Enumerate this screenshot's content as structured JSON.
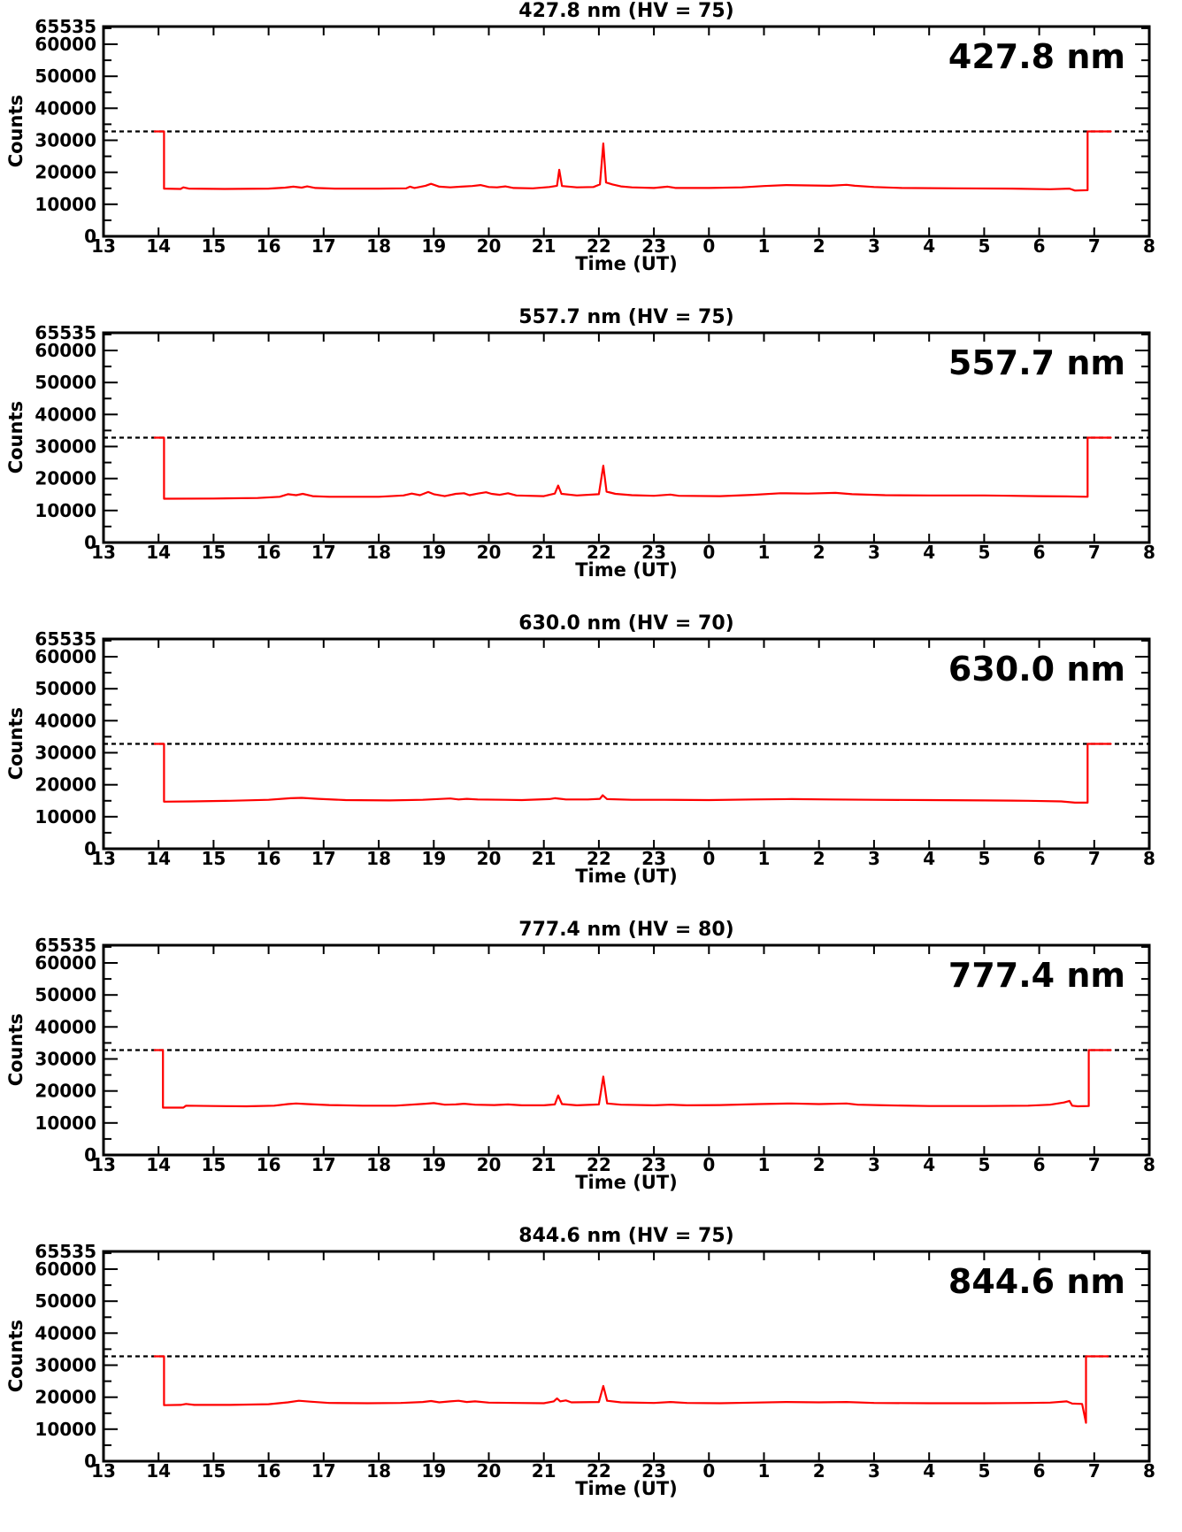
{
  "colors": {
    "line": "#ff0000",
    "axis": "#000000",
    "threshold_dash": "#000000",
    "background": "#ffffff"
  },
  "chart_data": {
    "type": "line",
    "layout": "5 stacked time-series panels, shared axes style",
    "x": {
      "label": "Time (UT)",
      "range_hours": [
        13,
        32
      ],
      "tick_labels": [
        "13",
        "14",
        "15",
        "16",
        "17",
        "18",
        "19",
        "20",
        "21",
        "22",
        "23",
        "0",
        "1",
        "2",
        "3",
        "4",
        "5",
        "6",
        "7",
        "8"
      ]
    },
    "y": {
      "label": "Counts",
      "range": [
        0,
        65535
      ],
      "major_ticks": [
        0,
        10000,
        20000,
        30000,
        40000,
        50000,
        60000,
        65535
      ],
      "major_tick_labels": [
        "0",
        "10000",
        "20000",
        "30000",
        "40000",
        "50000",
        "60000",
        "65535"
      ],
      "minor_step": 5000
    },
    "threshold": 32767,
    "legend_position": "none",
    "grid": false,
    "panels": [
      {
        "title": "427.8 nm (HV = 75)",
        "wavelength_label": "427.8 nm",
        "hv": 75,
        "points": [
          [
            13.93,
            32767
          ],
          [
            14.1,
            32767
          ],
          [
            14.1,
            14900
          ],
          [
            14.4,
            14800
          ],
          [
            14.45,
            15300
          ],
          [
            14.55,
            14900
          ],
          [
            15.2,
            14800
          ],
          [
            16.0,
            14900
          ],
          [
            16.3,
            15200
          ],
          [
            16.45,
            15500
          ],
          [
            16.6,
            15200
          ],
          [
            16.7,
            15600
          ],
          [
            16.85,
            15100
          ],
          [
            17.2,
            14900
          ],
          [
            18.0,
            14900
          ],
          [
            18.5,
            15000
          ],
          [
            18.57,
            15500
          ],
          [
            18.65,
            15100
          ],
          [
            18.85,
            15800
          ],
          [
            18.95,
            16400
          ],
          [
            19.1,
            15500
          ],
          [
            19.3,
            15300
          ],
          [
            19.5,
            15500
          ],
          [
            19.7,
            15700
          ],
          [
            19.85,
            16000
          ],
          [
            20.0,
            15400
          ],
          [
            20.15,
            15300
          ],
          [
            20.3,
            15600
          ],
          [
            20.45,
            15100
          ],
          [
            20.8,
            15000
          ],
          [
            21.1,
            15400
          ],
          [
            21.24,
            15800
          ],
          [
            21.28,
            20800
          ],
          [
            21.33,
            15700
          ],
          [
            21.6,
            15300
          ],
          [
            21.9,
            15400
          ],
          [
            22.02,
            16200
          ],
          [
            22.08,
            29000
          ],
          [
            22.13,
            16800
          ],
          [
            22.25,
            16200
          ],
          [
            22.4,
            15600
          ],
          [
            22.6,
            15300
          ],
          [
            23.0,
            15100
          ],
          [
            23.25,
            15500
          ],
          [
            23.4,
            15100
          ],
          [
            24.0,
            15100
          ],
          [
            24.6,
            15300
          ],
          [
            25.0,
            15700
          ],
          [
            25.4,
            16000
          ],
          [
            25.8,
            15900
          ],
          [
            26.2,
            15800
          ],
          [
            26.5,
            16100
          ],
          [
            26.65,
            15800
          ],
          [
            27.0,
            15400
          ],
          [
            27.5,
            15100
          ],
          [
            28.5,
            15000
          ],
          [
            29.5,
            14900
          ],
          [
            30.2,
            14700
          ],
          [
            30.55,
            14900
          ],
          [
            30.65,
            14300
          ],
          [
            30.88,
            14400
          ],
          [
            30.88,
            32767
          ],
          [
            31.3,
            32767
          ]
        ]
      },
      {
        "title": "557.7 nm (HV = 75)",
        "wavelength_label": "557.7 nm",
        "hv": 75,
        "points": [
          [
            13.93,
            32767
          ],
          [
            14.1,
            32767
          ],
          [
            14.1,
            13700
          ],
          [
            15.0,
            13750
          ],
          [
            15.8,
            13900
          ],
          [
            16.2,
            14300
          ],
          [
            16.35,
            15100
          ],
          [
            16.5,
            14800
          ],
          [
            16.62,
            15200
          ],
          [
            16.8,
            14500
          ],
          [
            17.1,
            14300
          ],
          [
            18.0,
            14300
          ],
          [
            18.45,
            14700
          ],
          [
            18.6,
            15300
          ],
          [
            18.75,
            14800
          ],
          [
            18.9,
            15800
          ],
          [
            19.0,
            15100
          ],
          [
            19.2,
            14500
          ],
          [
            19.4,
            15200
          ],
          [
            19.55,
            15400
          ],
          [
            19.65,
            14800
          ],
          [
            19.8,
            15300
          ],
          [
            19.95,
            15700
          ],
          [
            20.05,
            15200
          ],
          [
            20.2,
            14900
          ],
          [
            20.35,
            15400
          ],
          [
            20.5,
            14700
          ],
          [
            21.0,
            14500
          ],
          [
            21.2,
            15300
          ],
          [
            21.26,
            17800
          ],
          [
            21.32,
            15200
          ],
          [
            21.6,
            14700
          ],
          [
            22.0,
            15100
          ],
          [
            22.08,
            24000
          ],
          [
            22.14,
            15900
          ],
          [
            22.3,
            15200
          ],
          [
            22.6,
            14800
          ],
          [
            23.0,
            14600
          ],
          [
            23.3,
            15000
          ],
          [
            23.45,
            14600
          ],
          [
            24.2,
            14500
          ],
          [
            24.8,
            14900
          ],
          [
            25.3,
            15400
          ],
          [
            25.8,
            15300
          ],
          [
            26.3,
            15500
          ],
          [
            26.6,
            15100
          ],
          [
            27.2,
            14800
          ],
          [
            28.0,
            14700
          ],
          [
            29.0,
            14700
          ],
          [
            30.0,
            14500
          ],
          [
            30.5,
            14400
          ],
          [
            30.88,
            14300
          ],
          [
            30.88,
            32767
          ],
          [
            31.3,
            32767
          ]
        ]
      },
      {
        "title": "630.0 nm (HV = 70)",
        "wavelength_label": "630.0 nm",
        "hv": 70,
        "points": [
          [
            13.93,
            32767
          ],
          [
            14.1,
            32767
          ],
          [
            14.1,
            14700
          ],
          [
            14.6,
            14800
          ],
          [
            15.3,
            15000
          ],
          [
            16.0,
            15300
          ],
          [
            16.4,
            15800
          ],
          [
            16.6,
            15900
          ],
          [
            16.9,
            15600
          ],
          [
            17.4,
            15200
          ],
          [
            18.2,
            15100
          ],
          [
            18.8,
            15300
          ],
          [
            19.3,
            15700
          ],
          [
            19.45,
            15400
          ],
          [
            19.6,
            15600
          ],
          [
            19.8,
            15400
          ],
          [
            20.3,
            15300
          ],
          [
            20.6,
            15200
          ],
          [
            21.1,
            15500
          ],
          [
            21.2,
            15800
          ],
          [
            21.4,
            15400
          ],
          [
            21.8,
            15400
          ],
          [
            22.02,
            15600
          ],
          [
            22.07,
            16700
          ],
          [
            22.15,
            15500
          ],
          [
            22.6,
            15300
          ],
          [
            23.2,
            15300
          ],
          [
            24.0,
            15200
          ],
          [
            24.8,
            15400
          ],
          [
            25.5,
            15500
          ],
          [
            26.2,
            15400
          ],
          [
            27.0,
            15300
          ],
          [
            28.0,
            15200
          ],
          [
            29.0,
            15100
          ],
          [
            29.8,
            15000
          ],
          [
            30.4,
            14800
          ],
          [
            30.65,
            14400
          ],
          [
            30.88,
            14400
          ],
          [
            30.88,
            32767
          ],
          [
            31.3,
            32767
          ]
        ]
      },
      {
        "title": "777.4 nm (HV = 80)",
        "wavelength_label": "777.4 nm",
        "hv": 80,
        "points": [
          [
            13.93,
            32767
          ],
          [
            14.08,
            32767
          ],
          [
            14.08,
            14800
          ],
          [
            14.45,
            14800
          ],
          [
            14.5,
            15400
          ],
          [
            15.0,
            15300
          ],
          [
            15.6,
            15200
          ],
          [
            16.1,
            15400
          ],
          [
            16.35,
            15900
          ],
          [
            16.5,
            16100
          ],
          [
            16.7,
            15900
          ],
          [
            17.1,
            15600
          ],
          [
            17.7,
            15400
          ],
          [
            18.3,
            15400
          ],
          [
            18.85,
            16000
          ],
          [
            19.0,
            16200
          ],
          [
            19.2,
            15700
          ],
          [
            19.4,
            15800
          ],
          [
            19.55,
            16000
          ],
          [
            19.75,
            15700
          ],
          [
            20.1,
            15600
          ],
          [
            20.35,
            15800
          ],
          [
            20.6,
            15500
          ],
          [
            21.0,
            15500
          ],
          [
            21.2,
            15800
          ],
          [
            21.26,
            18600
          ],
          [
            21.33,
            15900
          ],
          [
            21.6,
            15500
          ],
          [
            22.0,
            15800
          ],
          [
            22.08,
            24500
          ],
          [
            22.15,
            16100
          ],
          [
            22.4,
            15700
          ],
          [
            23.0,
            15500
          ],
          [
            23.3,
            15700
          ],
          [
            23.6,
            15500
          ],
          [
            24.2,
            15600
          ],
          [
            24.9,
            15900
          ],
          [
            25.5,
            16100
          ],
          [
            26.0,
            15900
          ],
          [
            26.5,
            16100
          ],
          [
            26.7,
            15700
          ],
          [
            27.2,
            15500
          ],
          [
            28.0,
            15300
          ],
          [
            29.0,
            15300
          ],
          [
            29.8,
            15400
          ],
          [
            30.2,
            15700
          ],
          [
            30.45,
            16400
          ],
          [
            30.55,
            16900
          ],
          [
            30.6,
            15400
          ],
          [
            30.7,
            15200
          ],
          [
            30.9,
            15300
          ],
          [
            30.9,
            32767
          ],
          [
            31.3,
            32767
          ]
        ]
      },
      {
        "title": "844.6 nm (HV = 75)",
        "wavelength_label": "844.6 nm",
        "hv": 75,
        "points": [
          [
            13.93,
            32767
          ],
          [
            14.1,
            32767
          ],
          [
            14.1,
            17500
          ],
          [
            14.4,
            17600
          ],
          [
            14.5,
            17900
          ],
          [
            14.65,
            17600
          ],
          [
            15.3,
            17600
          ],
          [
            16.0,
            17800
          ],
          [
            16.35,
            18400
          ],
          [
            16.55,
            18900
          ],
          [
            16.75,
            18600
          ],
          [
            17.1,
            18200
          ],
          [
            17.8,
            18100
          ],
          [
            18.4,
            18200
          ],
          [
            18.8,
            18500
          ],
          [
            18.95,
            18800
          ],
          [
            19.1,
            18400
          ],
          [
            19.3,
            18700
          ],
          [
            19.45,
            18900
          ],
          [
            19.6,
            18500
          ],
          [
            19.75,
            18700
          ],
          [
            20.0,
            18300
          ],
          [
            20.5,
            18200
          ],
          [
            21.0,
            18100
          ],
          [
            21.18,
            18700
          ],
          [
            21.24,
            19600
          ],
          [
            21.3,
            18700
          ],
          [
            21.4,
            19000
          ],
          [
            21.5,
            18400
          ],
          [
            22.0,
            18500
          ],
          [
            22.08,
            23500
          ],
          [
            22.15,
            18900
          ],
          [
            22.4,
            18400
          ],
          [
            23.0,
            18200
          ],
          [
            23.3,
            18500
          ],
          [
            23.6,
            18200
          ],
          [
            24.2,
            18100
          ],
          [
            24.8,
            18300
          ],
          [
            25.4,
            18500
          ],
          [
            26.0,
            18400
          ],
          [
            26.5,
            18500
          ],
          [
            27.0,
            18200
          ],
          [
            28.0,
            18100
          ],
          [
            29.0,
            18100
          ],
          [
            29.8,
            18200
          ],
          [
            30.2,
            18300
          ],
          [
            30.5,
            18700
          ],
          [
            30.6,
            18000
          ],
          [
            30.78,
            17900
          ],
          [
            30.85,
            12000
          ],
          [
            30.85,
            32767
          ],
          [
            31.25,
            32767
          ]
        ]
      }
    ]
  }
}
